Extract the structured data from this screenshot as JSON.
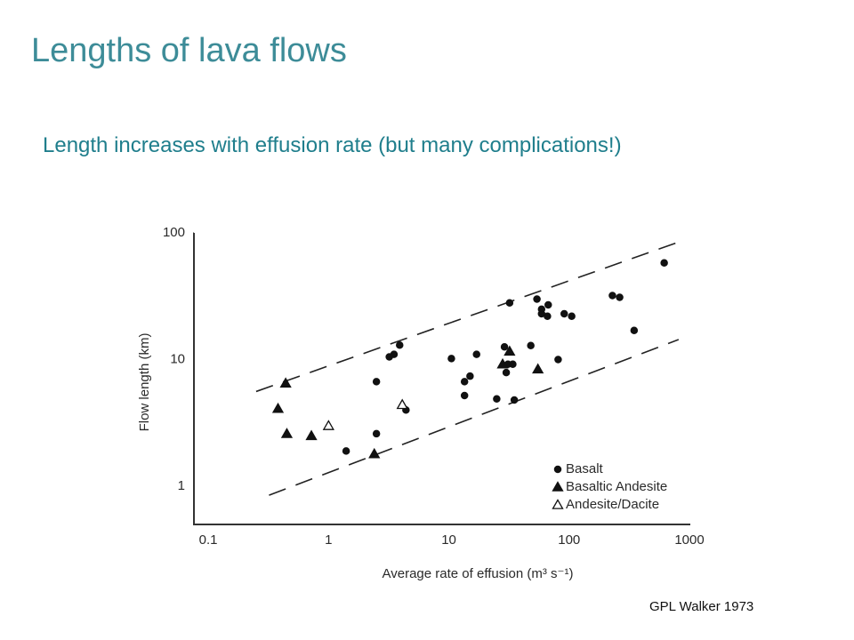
{
  "header": {
    "title": "Lengths of lava flows",
    "subtitle": "Length increases with effusion rate (but many complications!)"
  },
  "chart_data": {
    "type": "scatter",
    "log_x": true,
    "log_y": true,
    "grid": false,
    "legend": "lower right",
    "x_label": "Average rate of effusion (m³ s⁻¹)",
    "y_label": "Flow length (km)",
    "xlim": [
      0.076,
      1000
    ],
    "ylim": [
      0.5,
      100
    ],
    "xticks": [
      0.1,
      1,
      10,
      100,
      1000
    ],
    "yticks": [
      1,
      10,
      100
    ],
    "series": [
      {
        "name": "Basalt",
        "color": "#111111",
        "marker": "circle",
        "filled": true,
        "x": [
          32,
          54,
          67,
          59,
          59,
          66,
          91,
          105,
          229,
          263,
          347,
          617,
          3.9,
          3.5,
          3.2,
          2.5,
          10.5,
          17,
          15,
          13.5,
          13.5,
          29,
          31,
          34,
          30,
          25,
          35,
          48,
          81,
          4.4,
          2.5,
          1.4
        ],
        "values": [
          28,
          30,
          27,
          25,
          23,
          22,
          23,
          22,
          32,
          31,
          17,
          58,
          13,
          11,
          10.5,
          6.7,
          10.2,
          11,
          7.4,
          6.7,
          5.2,
          12.6,
          9.2,
          9.2,
          7.9,
          4.9,
          4.8,
          12.9,
          10,
          4.0,
          2.6,
          1.9
        ]
      },
      {
        "name": "Basaltic Andesite",
        "color": "#111111",
        "marker": "triangle",
        "filled": true,
        "x": [
          0.44,
          0.38,
          0.45,
          0.72,
          2.4,
          32,
          28,
          55
        ],
        "values": [
          6.5,
          4.1,
          2.6,
          2.5,
          1.8,
          11.6,
          9.2,
          8.4
        ]
      },
      {
        "name": "Andesite/Dacite",
        "color": "#111111",
        "marker": "triangle",
        "filled": false,
        "x": [
          1.0,
          4.1
        ],
        "values": [
          3.0,
          4.4
        ]
      }
    ],
    "trend_lines": [
      {
        "x": [
          0.25,
          912
        ],
        "values": [
          5.6,
          88
        ]
      },
      {
        "x": [
          0.32,
          813
        ],
        "values": [
          0.85,
          14.4
        ]
      }
    ]
  },
  "credit": "GPL Walker 1973"
}
